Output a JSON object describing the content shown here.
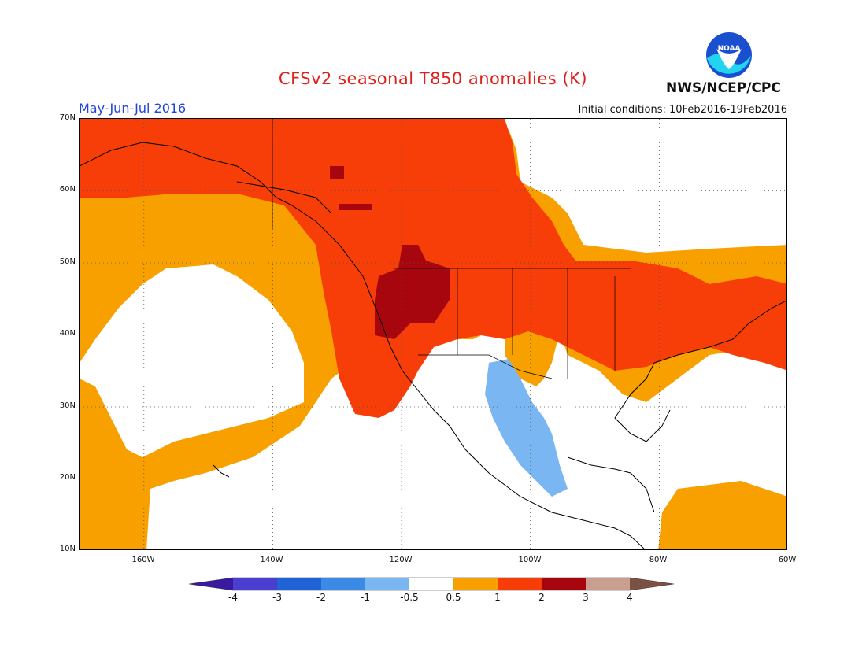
{
  "header": {
    "title": "CFSv2 seasonal T850 anomalies (K)",
    "period": "May-Jun-Jul 2016",
    "initial_conditions": "Initial conditions: 10Feb2016-19Feb2016",
    "agency": "NWS/NCEP/CPC",
    "logo_text": "NOAA"
  },
  "map": {
    "lat_labels": [
      "70N",
      "60N",
      "50N",
      "40N",
      "30N",
      "20N",
      "10N"
    ],
    "lon_labels": [
      "160W",
      "140W",
      "120W",
      "100W",
      "80W",
      "60W"
    ],
    "extent": {
      "lon_min": -170,
      "lon_max": -60,
      "lat_min": 10,
      "lat_max": 70
    },
    "grid": "dotted"
  },
  "colorbar": {
    "labels": [
      "-4",
      "-3",
      "-2",
      "-1",
      "-0.5",
      "0.5",
      "1",
      "2",
      "3",
      "4"
    ],
    "colors": [
      "#3a1aa0",
      "#4b3fcf",
      "#1f63d6",
      "#3a8ae6",
      "#7ab6f2",
      "#ffffff",
      "#f7a000",
      "#f73d08",
      "#a8060e",
      "#c9a08f",
      "#7b5143"
    ]
  }
}
